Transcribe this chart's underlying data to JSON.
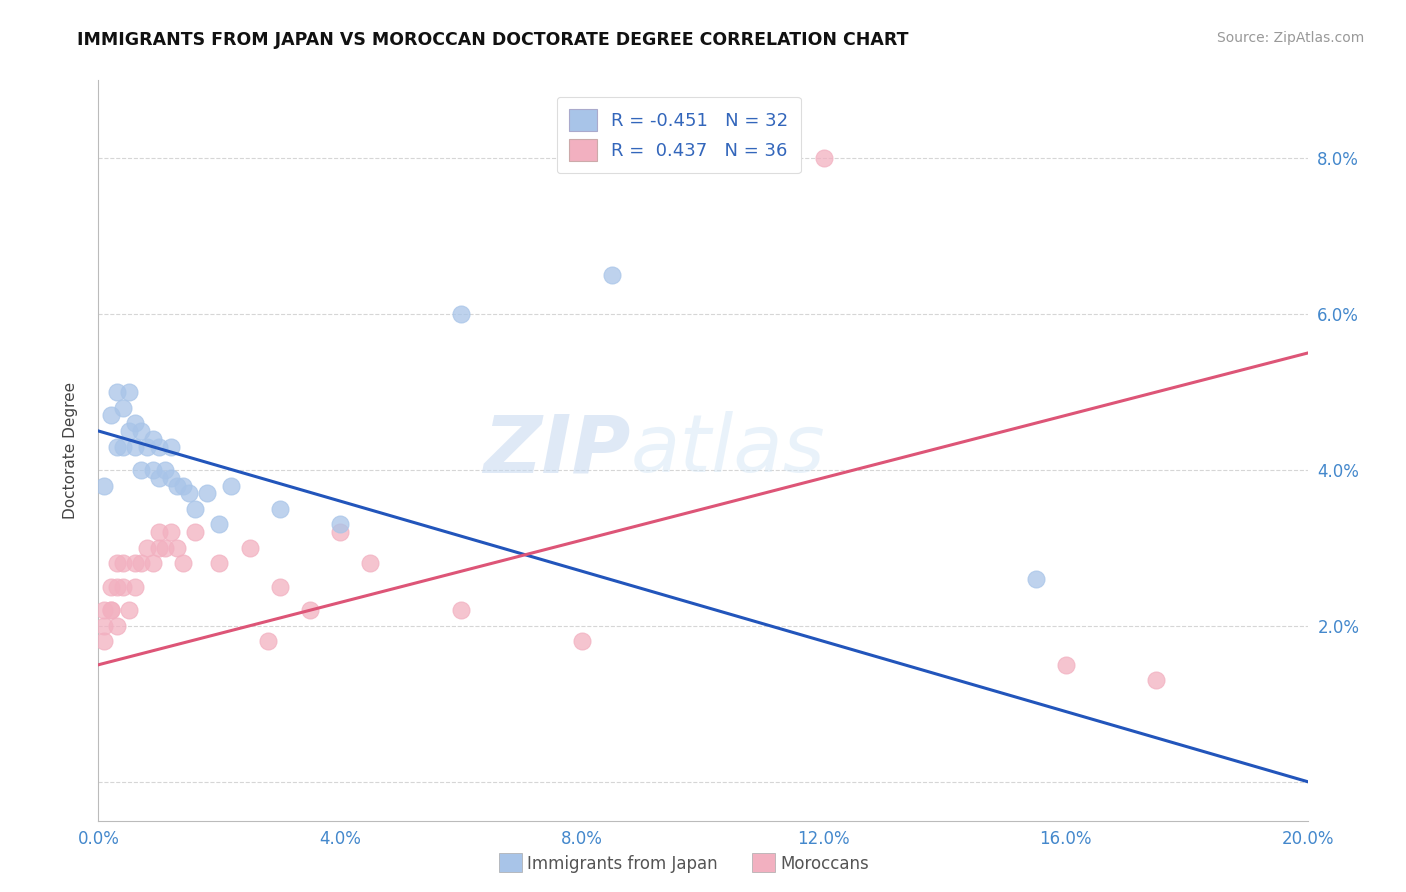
{
  "title": "IMMIGRANTS FROM JAPAN VS MOROCCAN DOCTORATE DEGREE CORRELATION CHART",
  "source": "Source: ZipAtlas.com",
  "ylabel": "Doctorate Degree",
  "legend_label1": "Immigrants from Japan",
  "legend_label2": "Moroccans",
  "r1": "-0.451",
  "n1": "32",
  "r2": "0.437",
  "n2": "36",
  "xlim": [
    0.0,
    0.2
  ],
  "ylim": [
    -0.005,
    0.09
  ],
  "xticks": [
    0.0,
    0.04,
    0.08,
    0.12,
    0.16,
    0.2
  ],
  "xticklabels": [
    "0.0%",
    "4.0%",
    "8.0%",
    "12.0%",
    "16.0%",
    "20.0%"
  ],
  "yticks": [
    0.0,
    0.02,
    0.04,
    0.06,
    0.08
  ],
  "yticklabels": [
    "",
    "2.0%",
    "4.0%",
    "6.0%",
    "8.0%"
  ],
  "color_blue": "#a8c4e8",
  "color_pink": "#f2b0c0",
  "color_blue_line": "#2255bb",
  "color_pink_line": "#dd5577",
  "watermark_zip": "ZIP",
  "watermark_atlas": "atlas",
  "japan_x": [
    0.001,
    0.002,
    0.003,
    0.003,
    0.004,
    0.004,
    0.005,
    0.005,
    0.006,
    0.006,
    0.007,
    0.007,
    0.008,
    0.009,
    0.009,
    0.01,
    0.01,
    0.011,
    0.012,
    0.012,
    0.013,
    0.014,
    0.015,
    0.016,
    0.018,
    0.02,
    0.022,
    0.03,
    0.04,
    0.06,
    0.085,
    0.155
  ],
  "japan_y": [
    0.038,
    0.047,
    0.043,
    0.05,
    0.043,
    0.048,
    0.045,
    0.05,
    0.043,
    0.046,
    0.04,
    0.045,
    0.043,
    0.04,
    0.044,
    0.039,
    0.043,
    0.04,
    0.039,
    0.043,
    0.038,
    0.038,
    0.037,
    0.035,
    0.037,
    0.033,
    0.038,
    0.035,
    0.033,
    0.06,
    0.065,
    0.026
  ],
  "morocco_x": [
    0.001,
    0.001,
    0.001,
    0.002,
    0.002,
    0.002,
    0.003,
    0.003,
    0.003,
    0.004,
    0.004,
    0.005,
    0.006,
    0.006,
    0.007,
    0.008,
    0.009,
    0.01,
    0.01,
    0.011,
    0.012,
    0.013,
    0.014,
    0.016,
    0.02,
    0.025,
    0.028,
    0.03,
    0.035,
    0.04,
    0.045,
    0.06,
    0.08,
    0.12,
    0.16,
    0.175
  ],
  "morocco_y": [
    0.018,
    0.02,
    0.022,
    0.022,
    0.022,
    0.025,
    0.02,
    0.025,
    0.028,
    0.025,
    0.028,
    0.022,
    0.025,
    0.028,
    0.028,
    0.03,
    0.028,
    0.03,
    0.032,
    0.03,
    0.032,
    0.03,
    0.028,
    0.032,
    0.028,
    0.03,
    0.018,
    0.025,
    0.022,
    0.032,
    0.028,
    0.022,
    0.018,
    0.08,
    0.015,
    0.013
  ],
  "japan_line_x": [
    0.0,
    0.2
  ],
  "japan_line_y": [
    0.045,
    0.0
  ],
  "morocco_line_x": [
    0.0,
    0.2
  ],
  "morocco_line_y": [
    0.015,
    0.055
  ]
}
